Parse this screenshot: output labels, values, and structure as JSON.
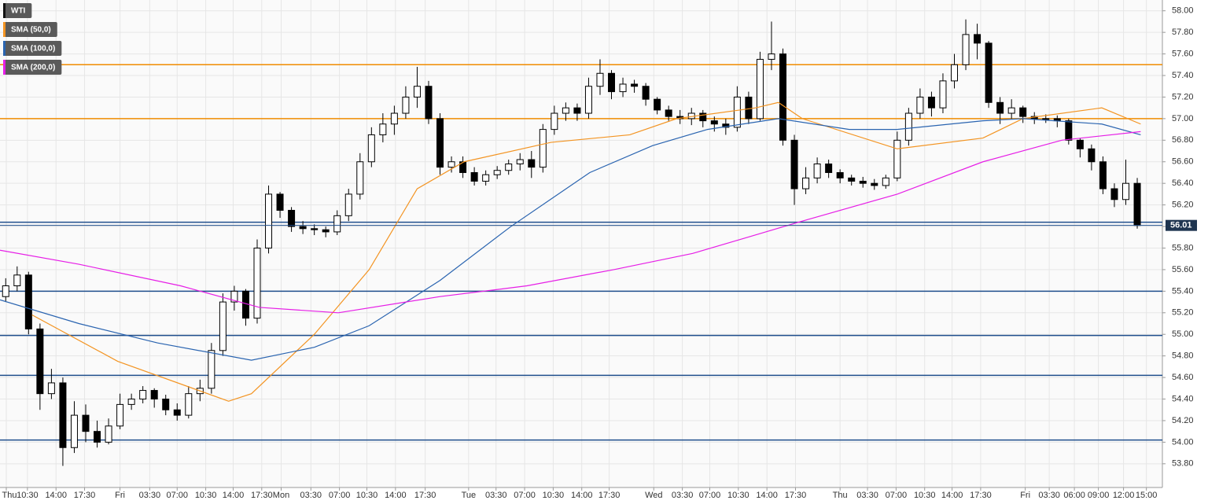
{
  "chart_data": {
    "type": "candlestick",
    "xlim": [
      -0.5,
      101.2
    ],
    "ylim": [
      53.58,
      58.1
    ],
    "grid": true,
    "yticks": [
      {
        "value": 53.8,
        "label": "53.80"
      },
      {
        "value": 54.0,
        "label": "54.00"
      },
      {
        "value": 54.2,
        "label": "54.20"
      },
      {
        "value": 54.4,
        "label": "54.40"
      },
      {
        "value": 54.6,
        "label": "54.60"
      },
      {
        "value": 54.8,
        "label": "54.80"
      },
      {
        "value": 55.0,
        "label": "55.00"
      },
      {
        "value": 55.2,
        "label": "55.20"
      },
      {
        "value": 55.4,
        "label": "55.40"
      },
      {
        "value": 55.6,
        "label": "55.60"
      },
      {
        "value": 55.8,
        "label": "55.80"
      },
      {
        "value": 56.0,
        "label": "56.00"
      },
      {
        "value": 56.2,
        "label": "56.20"
      },
      {
        "value": 56.4,
        "label": "56.40"
      },
      {
        "value": 56.6,
        "label": "56.60"
      },
      {
        "value": 56.8,
        "label": "56.80"
      },
      {
        "value": 57.0,
        "label": "57.00"
      },
      {
        "value": 57.2,
        "label": "57.20"
      },
      {
        "value": 57.4,
        "label": "57.40"
      },
      {
        "value": 57.6,
        "label": "57.60"
      },
      {
        "value": 57.8,
        "label": "57.80"
      },
      {
        "value": 58.0,
        "label": "58.00"
      }
    ],
    "xticks": [
      {
        "value": 0.05,
        "label": "Thu"
      },
      {
        "value": 1.9,
        "label": "10:30"
      },
      {
        "value": 4.4,
        "label": "14:00"
      },
      {
        "value": 6.9,
        "label": "17:30"
      },
      {
        "value": 10.0,
        "label": "Fri"
      },
      {
        "value": 12.6,
        "label": "03:30"
      },
      {
        "value": 15.0,
        "label": "07:00"
      },
      {
        "value": 17.5,
        "label": "10:30"
      },
      {
        "value": 19.9,
        "label": "14:00"
      },
      {
        "value": 22.4,
        "label": "17:30"
      },
      {
        "value": 24.1,
        "label": "Mon"
      },
      {
        "value": 26.7,
        "label": "03:30"
      },
      {
        "value": 29.2,
        "label": "07:00"
      },
      {
        "value": 31.6,
        "label": "10:30"
      },
      {
        "value": 34.1,
        "label": "14:00"
      },
      {
        "value": 36.7,
        "label": "17:30"
      },
      {
        "value": 40.5,
        "label": "Tue"
      },
      {
        "value": 42.9,
        "label": "03:30"
      },
      {
        "value": 45.4,
        "label": "07:00"
      },
      {
        "value": 47.9,
        "label": "10:30"
      },
      {
        "value": 50.4,
        "label": "14:00"
      },
      {
        "value": 52.8,
        "label": "17:30"
      },
      {
        "value": 56.7,
        "label": "Wed"
      },
      {
        "value": 59.2,
        "label": "03:30"
      },
      {
        "value": 61.6,
        "label": "07:00"
      },
      {
        "value": 64.1,
        "label": "10:30"
      },
      {
        "value": 66.6,
        "label": "14:00"
      },
      {
        "value": 69.1,
        "label": "17:30"
      },
      {
        "value": 73.0,
        "label": "Thu"
      },
      {
        "value": 75.4,
        "label": "03:30"
      },
      {
        "value": 77.9,
        "label": "07:00"
      },
      {
        "value": 80.4,
        "label": "10:30"
      },
      {
        "value": 82.8,
        "label": "14:00"
      },
      {
        "value": 85.3,
        "label": "17:30"
      },
      {
        "value": 89.2,
        "label": "Fri"
      },
      {
        "value": 91.3,
        "label": "03:30"
      },
      {
        "value": 93.5,
        "label": "06:00"
      },
      {
        "value": 95.6,
        "label": "09:00"
      },
      {
        "value": 97.8,
        "label": "12:00"
      },
      {
        "value": 99.8,
        "label": "15:00"
      }
    ],
    "series": [
      {
        "name": "WTI",
        "type": "candlestick",
        "color": "#000000",
        "open": [
          55.35,
          55.45,
          55.55,
          55.05,
          54.45,
          54.55,
          53.95,
          54.25,
          54.1,
          54.0,
          54.15,
          54.35,
          54.4,
          54.48,
          54.4,
          54.3,
          54.25,
          54.45,
          54.5,
          54.85,
          55.3,
          55.4,
          55.15,
          55.8,
          56.3,
          56.15,
          56.0,
          55.98,
          55.97,
          55.95,
          56.1,
          56.3,
          56.6,
          56.85,
          56.95,
          57.05,
          57.2,
          57.3,
          57.0,
          56.55,
          56.6,
          56.5,
          56.42,
          56.48,
          56.52,
          56.58,
          56.62,
          56.55,
          56.9,
          57.05,
          57.1,
          57.05,
          57.3,
          57.42,
          57.25,
          57.32,
          57.3,
          57.18,
          57.08,
          57.02,
          57.0,
          57.05,
          56.98,
          56.95,
          56.92,
          57.2,
          57.0,
          57.55,
          57.6,
          56.8,
          56.35,
          56.45,
          56.58,
          56.5,
          56.45,
          56.42,
          56.4,
          56.38,
          56.45,
          56.8,
          57.05,
          57.2,
          57.1,
          57.35,
          57.5,
          57.78,
          57.7,
          57.15,
          57.05,
          57.1,
          57.02,
          57.0,
          57.0,
          56.98,
          56.8,
          56.72,
          56.6,
          56.35,
          56.25,
          56.4
        ],
        "high": [
          55.52,
          55.63,
          55.58,
          55.1,
          54.68,
          54.6,
          54.38,
          54.35,
          54.2,
          54.22,
          54.45,
          54.45,
          54.52,
          54.5,
          54.44,
          54.36,
          54.52,
          54.58,
          54.92,
          55.38,
          55.45,
          55.42,
          55.88,
          56.38,
          56.32,
          56.18,
          56.05,
          56.02,
          56.0,
          56.15,
          56.35,
          56.68,
          56.92,
          57.05,
          57.12,
          57.3,
          57.48,
          57.35,
          57.05,
          56.65,
          56.65,
          56.55,
          56.52,
          56.56,
          56.62,
          56.68,
          56.7,
          56.95,
          57.12,
          57.15,
          57.14,
          57.38,
          57.55,
          57.45,
          57.38,
          57.36,
          57.33,
          57.2,
          57.12,
          57.08,
          57.1,
          57.08,
          57.02,
          57.0,
          57.3,
          57.25,
          57.62,
          57.9,
          57.65,
          56.85,
          56.55,
          56.64,
          56.62,
          56.53,
          56.48,
          56.46,
          56.44,
          56.48,
          56.88,
          57.1,
          57.28,
          57.25,
          57.42,
          57.6,
          57.92,
          57.88,
          57.72,
          57.2,
          57.18,
          57.12,
          57.06,
          57.04,
          57.03,
          57.0,
          56.82,
          56.76,
          56.65,
          56.4,
          56.62,
          56.45
        ],
        "low": [
          55.3,
          55.4,
          55.0,
          54.3,
          54.4,
          53.78,
          53.9,
          54.0,
          53.95,
          53.98,
          54.12,
          54.3,
          54.36,
          54.32,
          54.25,
          54.2,
          54.22,
          54.38,
          54.45,
          54.8,
          55.22,
          55.08,
          55.1,
          55.75,
          56.08,
          55.95,
          55.93,
          55.92,
          55.9,
          55.92,
          56.05,
          56.25,
          56.55,
          56.78,
          56.85,
          57.0,
          57.1,
          56.95,
          56.48,
          56.5,
          56.45,
          56.38,
          56.38,
          56.44,
          56.48,
          56.52,
          56.45,
          56.5,
          56.85,
          56.98,
          56.98,
          57.0,
          57.22,
          57.18,
          57.2,
          57.24,
          57.12,
          57.04,
          56.98,
          56.95,
          56.94,
          56.92,
          56.88,
          56.85,
          56.88,
          56.95,
          56.98,
          57.45,
          56.75,
          56.2,
          56.3,
          56.4,
          56.45,
          56.4,
          56.38,
          56.36,
          56.34,
          56.35,
          56.42,
          56.75,
          57.0,
          57.02,
          57.05,
          57.28,
          57.45,
          57.55,
          57.1,
          56.95,
          57.0,
          56.96,
          56.95,
          56.96,
          56.92,
          56.76,
          56.64,
          56.52,
          56.3,
          56.18,
          56.2,
          55.98
        ],
        "close": [
          55.45,
          55.55,
          55.05,
          54.45,
          54.55,
          53.95,
          54.25,
          54.1,
          54.0,
          54.15,
          54.35,
          54.4,
          54.48,
          54.4,
          54.3,
          54.25,
          54.45,
          54.5,
          54.85,
          55.3,
          55.4,
          55.15,
          55.8,
          56.3,
          56.15,
          56.0,
          55.98,
          55.97,
          55.95,
          56.1,
          56.3,
          56.6,
          56.85,
          56.95,
          57.05,
          57.2,
          57.3,
          57.0,
          56.55,
          56.6,
          56.5,
          56.42,
          56.48,
          56.52,
          56.58,
          56.62,
          56.55,
          56.9,
          57.05,
          57.1,
          57.05,
          57.3,
          57.42,
          57.25,
          57.32,
          57.3,
          57.18,
          57.08,
          57.02,
          57.0,
          57.05,
          56.98,
          56.95,
          56.92,
          57.2,
          57.0,
          57.55,
          57.6,
          56.8,
          56.35,
          56.45,
          56.58,
          56.5,
          56.45,
          56.42,
          56.4,
          56.38,
          56.45,
          56.8,
          57.05,
          57.2,
          57.1,
          57.35,
          57.5,
          57.78,
          57.7,
          57.15,
          57.05,
          57.1,
          57.02,
          57.0,
          57.0,
          56.98,
          56.8,
          56.72,
          56.6,
          56.35,
          56.25,
          56.4,
          56.01
        ]
      },
      {
        "name": "SMA (50,0)",
        "type": "line",
        "color": "#f39422",
        "x": [
          2.3,
          9.8,
          19.5,
          21.5,
          27.0,
          31.8,
          36.0,
          40.1,
          47.7,
          54.6,
          58.7,
          65.6,
          67.6,
          69.7,
          78.0,
          85.5,
          89.0,
          95.9,
          99.3
        ],
        "values": [
          55.18,
          54.75,
          54.38,
          54.45,
          55.0,
          55.6,
          56.35,
          56.6,
          56.78,
          56.85,
          57.0,
          57.1,
          57.15,
          57.0,
          56.72,
          56.82,
          57.0,
          57.1,
          56.95
        ]
      },
      {
        "name": "SMA (100,0)",
        "type": "line",
        "color": "#2a64b0",
        "x": [
          -0.5,
          6.4,
          13.3,
          21.5,
          27.0,
          31.8,
          38.0,
          44.2,
          51.1,
          56.6,
          61.4,
          67.6,
          73.8,
          78.0,
          85.5,
          89.0,
          95.9,
          99.3
        ],
        "values": [
          55.32,
          55.1,
          54.92,
          54.76,
          54.88,
          55.08,
          55.5,
          56.0,
          56.5,
          56.75,
          56.9,
          57.0,
          56.9,
          56.9,
          56.98,
          57.0,
          56.95,
          56.85
        ]
      },
      {
        "name": "SMA (200,0)",
        "type": "line",
        "color": "#e61ee6",
        "x": [
          -0.5,
          6.4,
          15.3,
          22.2,
          29.1,
          38.0,
          45.6,
          53.2,
          60.1,
          64.9,
          69.7,
          78.0,
          85.5,
          92.4,
          99.3
        ],
        "values": [
          55.78,
          55.65,
          55.45,
          55.25,
          55.2,
          55.35,
          55.45,
          55.6,
          55.75,
          55.9,
          56.05,
          56.3,
          56.6,
          56.8,
          56.88
        ]
      }
    ],
    "levels": [
      {
        "value": 57.5,
        "color": "#f08c00"
      },
      {
        "value": 57.0,
        "color": "#f08c00"
      },
      {
        "value": 56.04,
        "color": "#1f4e8c"
      },
      {
        "value": 55.4,
        "color": "#1f4e8c"
      },
      {
        "value": 54.99,
        "color": "#1f4e8c"
      },
      {
        "value": 54.62,
        "color": "#1f4e8c"
      },
      {
        "value": 54.02,
        "color": "#1f4e8c"
      }
    ],
    "last_price": 56.01
  }
}
